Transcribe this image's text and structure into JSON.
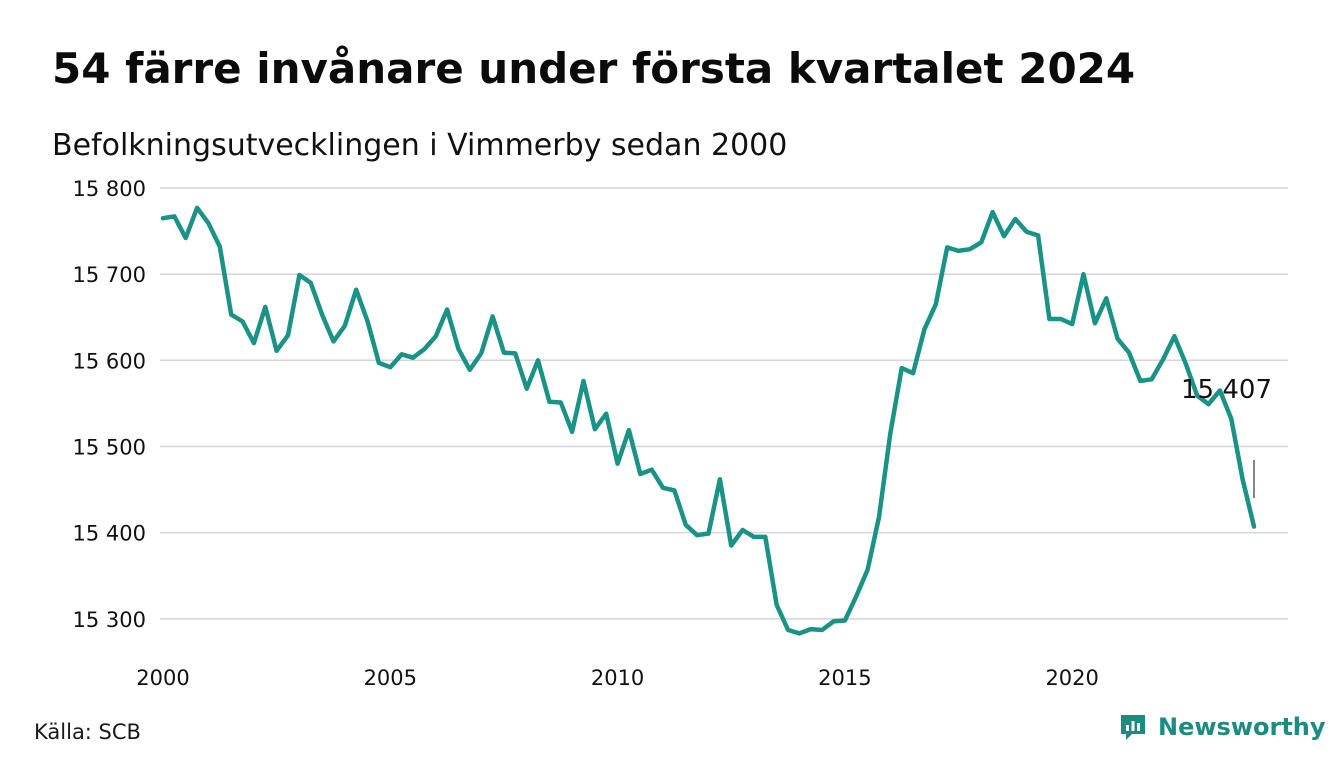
{
  "header": {
    "title": "54 färre invånare under första kvartalet 2024",
    "subtitle": "Befolkningsutvecklingen i Vimmerby sedan 2000"
  },
  "footer": {
    "source": "Källa: SCB",
    "brand": "Newsworthy",
    "brand_icon": "bar-chart-bubble-icon"
  },
  "colors": {
    "line": "#1a9285",
    "grid": "#d6d6db",
    "text": "#111111",
    "brand": "#1a8c80"
  },
  "chart_data": {
    "type": "line",
    "x_start": 2000.0,
    "x_step": 0.25,
    "series": [
      {
        "values": [
          15765,
          15767,
          15742,
          15777,
          15759,
          15732,
          15653,
          15645,
          15620,
          15662,
          15611,
          15629,
          15699,
          15690,
          15653,
          15622,
          15640,
          15682,
          15645,
          15597,
          15592,
          15607,
          15603,
          15613,
          15628,
          15659,
          15613,
          15589,
          15608,
          15651,
          15609,
          15608,
          15567,
          15600,
          15552,
          15551,
          15517,
          15576,
          15520,
          15538,
          15480,
          15519,
          15468,
          15473,
          15452,
          15449,
          15409,
          15397,
          15399,
          15462,
          15385,
          15403,
          15395,
          15395,
          15316,
          15287,
          15283,
          15288,
          15287,
          15297,
          15298,
          15326,
          15357,
          15418,
          15515,
          15591,
          15585,
          15636,
          15665,
          15731,
          15727,
          15729,
          15737,
          15772,
          15744,
          15764,
          15749,
          15745,
          15648,
          15648,
          15642,
          15700,
          15643,
          15672,
          15625,
          15609,
          15576,
          15578,
          15601,
          15628,
          15596,
          15559,
          15549,
          15565,
          15532,
          15462,
          15407
        ]
      }
    ],
    "xticks": [
      2000,
      2005,
      2010,
      2015,
      2020
    ],
    "yticks": [
      15300,
      15400,
      15500,
      15600,
      15700,
      15800
    ],
    "ytick_labels": [
      "15 300",
      "15 400",
      "15 500",
      "15 600",
      "15 700",
      "15 800"
    ],
    "xlim": [
      2000,
      2024.5
    ],
    "ylim": [
      15280,
      15800
    ],
    "grid": true,
    "annotation": {
      "text": "15 407",
      "x": 2024.0,
      "y": 15407
    }
  }
}
